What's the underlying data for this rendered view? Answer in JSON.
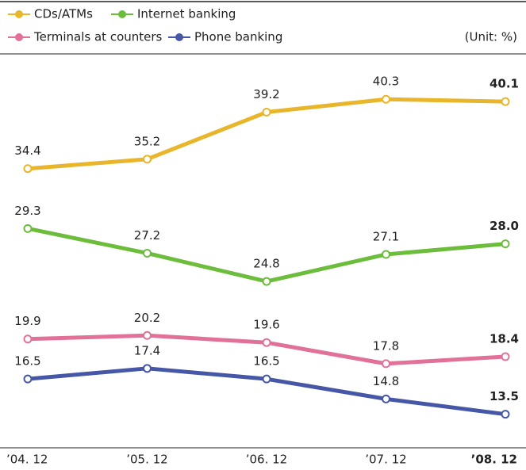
{
  "chart_data": {
    "type": "line",
    "unit_note": "(Unit: %)",
    "categories": [
      "’04. 12",
      "’05. 12",
      "’06. 12",
      "’07. 12",
      "’08. 12"
    ],
    "series": [
      {
        "name": "CDs/ATMs",
        "color": "#e9b52b",
        "values": [
          34.4,
          35.2,
          39.2,
          40.3,
          40.1
        ]
      },
      {
        "name": "Internet banking",
        "color": "#6dbd3c",
        "values": [
          29.3,
          27.2,
          24.8,
          27.1,
          28.0
        ],
        "value_labels": [
          "29.3",
          "27.2",
          "24.8",
          "27.1",
          "28.0"
        ]
      },
      {
        "name": "Terminals at counters",
        "color": "#e2719a",
        "values": [
          19.9,
          20.2,
          19.6,
          17.8,
          18.4
        ]
      },
      {
        "name": "Phone banking",
        "color": "#4657a8",
        "values": [
          16.5,
          17.4,
          16.5,
          14.8,
          13.5
        ]
      }
    ]
  }
}
